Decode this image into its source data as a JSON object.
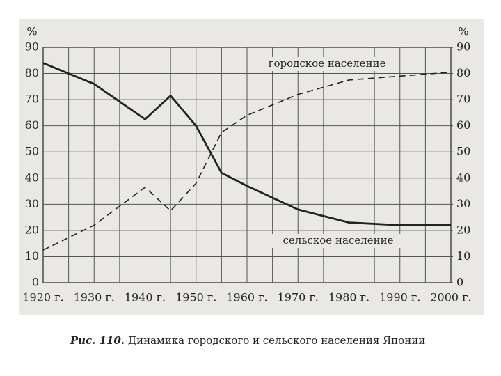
{
  "chart_data": {
    "type": "line",
    "ylabel": "%",
    "y2label": "%",
    "caption_label": "Рис. 110.",
    "caption": "Динамика городского и сельского населения Японии",
    "xlim": [
      1920,
      2000
    ],
    "xticks": [
      {
        "value": 1920,
        "label": "1920 г."
      },
      {
        "value": 1930,
        "label": "1930 г."
      },
      {
        "value": 1940,
        "label": "1940 г."
      },
      {
        "value": 1950,
        "label": "1950 г."
      },
      {
        "value": 1960,
        "label": "1960 г."
      },
      {
        "value": 1970,
        "label": "1970 г."
      },
      {
        "value": 1980,
        "label": "1980 г."
      },
      {
        "value": 1990,
        "label": "1990 г."
      },
      {
        "value": 2000,
        "label": "2000 г."
      }
    ],
    "xminor_ticks": [
      1925,
      1935,
      1945,
      1955,
      1965,
      1975,
      1985,
      1995
    ],
    "ylim": [
      0,
      90
    ],
    "yticks": [
      0,
      10,
      20,
      30,
      40,
      50,
      60,
      70,
      80,
      90
    ],
    "y2lim": [
      0,
      90
    ],
    "y2ticks": [
      0,
      10,
      20,
      30,
      40,
      50,
      60,
      70,
      80,
      90
    ],
    "grid": true,
    "x": [
      1920,
      1930,
      1940,
      1945,
      1950,
      1955,
      1960,
      1970,
      1980,
      1990,
      2000
    ],
    "series": [
      {
        "name": "городское население",
        "color": "#222222",
        "dashed": true,
        "values": [
          12.5,
          22,
          36.5,
          27.5,
          38,
          57.5,
          64,
          72,
          77.5,
          79,
          80.5
        ]
      },
      {
        "name": "сельское население",
        "color": "#222222",
        "dashed": false,
        "values": [
          84,
          76,
          62.5,
          71.5,
          60,
          42,
          37,
          28,
          23,
          22,
          22
        ]
      }
    ]
  }
}
